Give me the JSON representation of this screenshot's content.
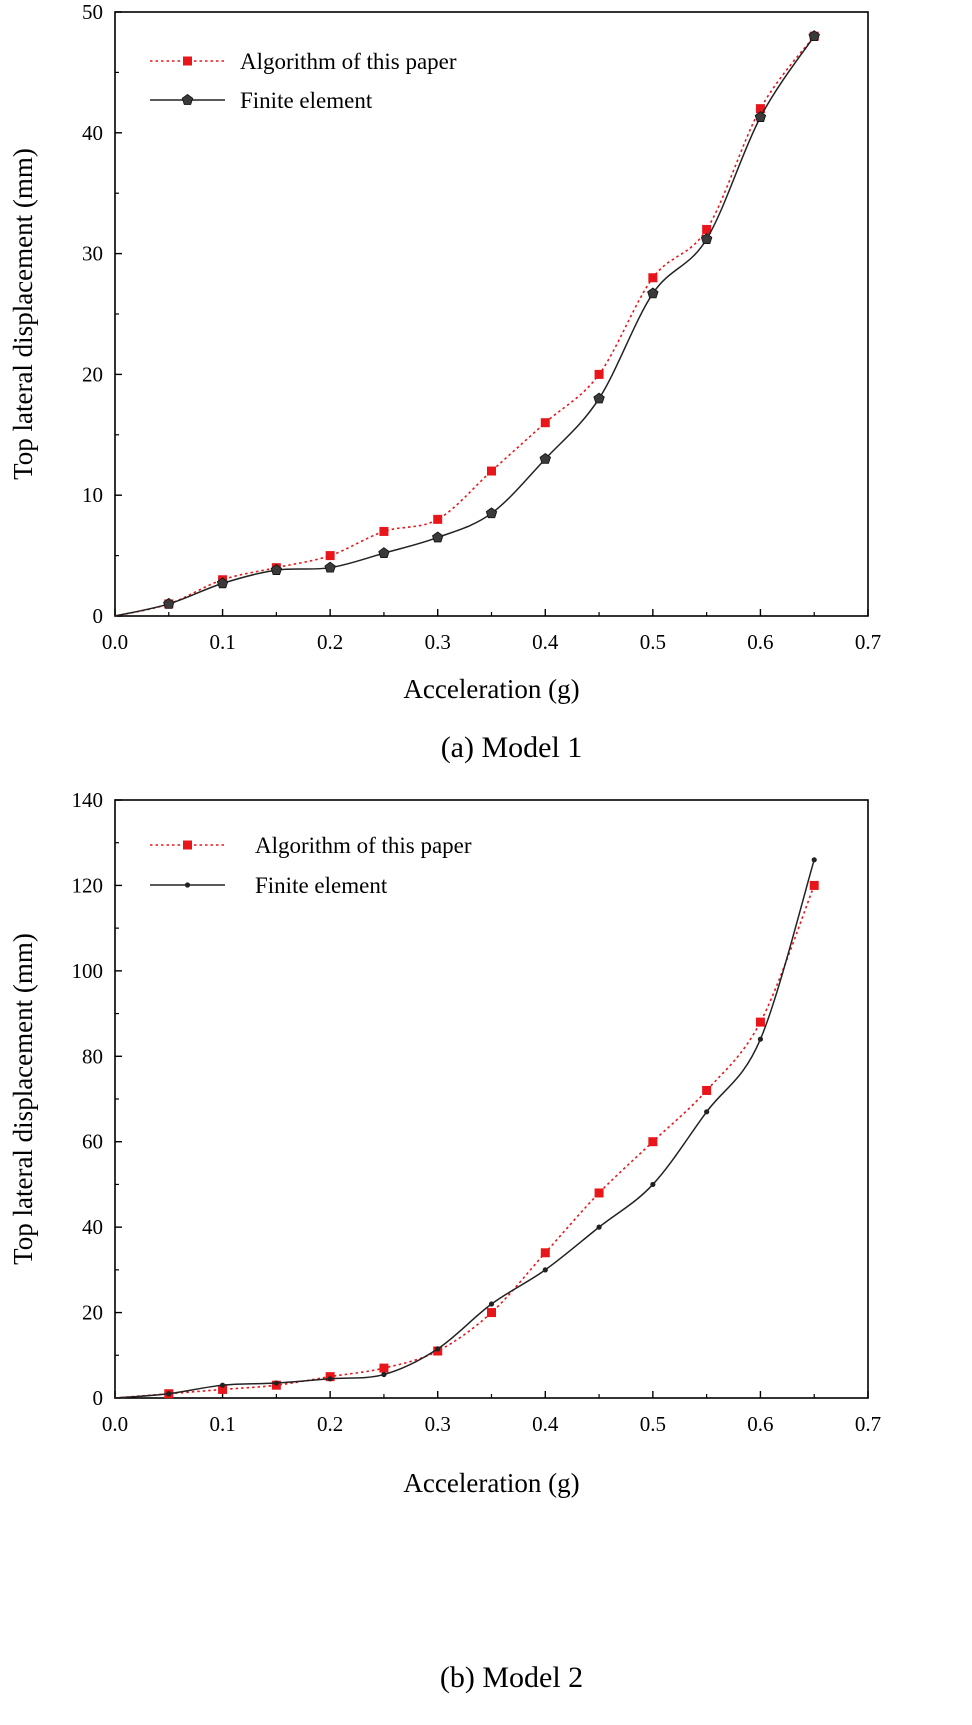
{
  "chart_data": [
    {
      "type": "line",
      "caption": "(a) Model 1",
      "xlabel": "Acceleration (g)",
      "ylabel": "Top lateral displacement (mm)",
      "xlim": [
        0.0,
        0.7
      ],
      "ylim": [
        0,
        50
      ],
      "xticks": [
        "0.0",
        "0.1",
        "0.2",
        "0.3",
        "0.4",
        "0.5",
        "0.6",
        "0.7"
      ],
      "yticks": [
        "0",
        "10",
        "20",
        "30",
        "40",
        "50"
      ],
      "legend_position": "top-left",
      "series": [
        {
          "name": "Algorithm of this paper",
          "color": "#e8161b",
          "style": "dotted",
          "marker": "square",
          "x": [
            0.0,
            0.05,
            0.1,
            0.15,
            0.2,
            0.25,
            0.3,
            0.35,
            0.4,
            0.45,
            0.5,
            0.55,
            0.6,
            0.65
          ],
          "y": [
            0,
            1,
            3,
            4,
            5,
            7,
            8,
            12,
            16,
            20,
            28,
            32,
            42,
            48
          ]
        },
        {
          "name": "Finite element",
          "color": "#222222",
          "style": "solid",
          "marker": "pentagon",
          "x": [
            0.0,
            0.05,
            0.1,
            0.15,
            0.2,
            0.25,
            0.3,
            0.35,
            0.4,
            0.45,
            0.5,
            0.55,
            0.6,
            0.65
          ],
          "y": [
            0,
            1,
            2.7,
            3.8,
            4,
            5.2,
            6.5,
            8.5,
            13,
            18,
            26.7,
            31.2,
            41.3,
            48
          ]
        }
      ]
    },
    {
      "type": "line",
      "caption": "(b) Model 2",
      "xlabel": "Acceleration (g)",
      "ylabel": "Top lateral displacement (mm)",
      "xlim": [
        0.0,
        0.7
      ],
      "ylim": [
        0,
        140
      ],
      "xticks": [
        "0.0",
        "0.1",
        "0.2",
        "0.3",
        "0.4",
        "0.5",
        "0.6",
        "0.7"
      ],
      "yticks": [
        "0",
        "20",
        "40",
        "60",
        "80",
        "100",
        "120",
        "140"
      ],
      "legend_position": "top-left",
      "series": [
        {
          "name": "Algorithm of this paper",
          "color": "#e8161b",
          "style": "dotted",
          "marker": "square",
          "x": [
            0.0,
            0.05,
            0.1,
            0.15,
            0.2,
            0.25,
            0.3,
            0.35,
            0.4,
            0.45,
            0.5,
            0.55,
            0.6,
            0.65
          ],
          "y": [
            0,
            1,
            2,
            3,
            5,
            7,
            11,
            20,
            34,
            48,
            60,
            72,
            88,
            120
          ]
        },
        {
          "name": "Finite element",
          "color": "#222222",
          "style": "solid",
          "marker": "dot",
          "x": [
            0.0,
            0.05,
            0.1,
            0.15,
            0.2,
            0.25,
            0.3,
            0.35,
            0.4,
            0.45,
            0.5,
            0.55,
            0.6,
            0.65
          ],
          "y": [
            0,
            1,
            3,
            3.5,
            4.5,
            5.5,
            11.5,
            22,
            30,
            40,
            50,
            67,
            84,
            126
          ]
        }
      ]
    }
  ]
}
